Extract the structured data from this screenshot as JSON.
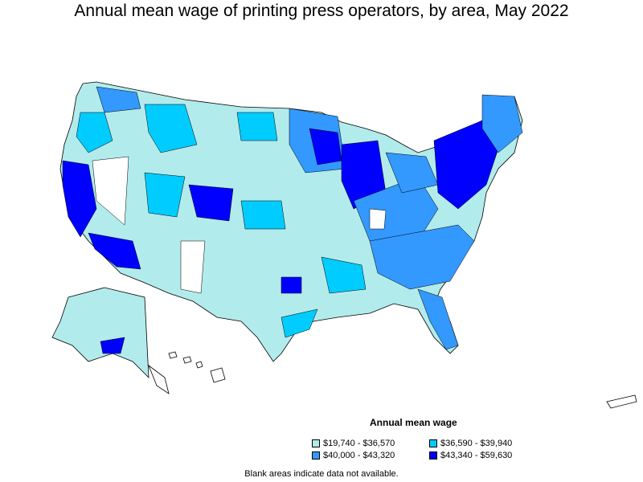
{
  "title": "Annual mean wage of printing press operators, by area, May 2022",
  "legend": {
    "title": "Annual mean wage",
    "items": [
      {
        "label": "$19,740 - $36,570",
        "color": "#b2ebeb"
      },
      {
        "label": "$36,590 - $39,940",
        "color": "#00ccff"
      },
      {
        "label": "$40,000 - $43,320",
        "color": "#3399ff"
      },
      {
        "label": "$43,340 - $59,630",
        "color": "#0000ff"
      }
    ]
  },
  "note": "Blank areas indicate data not available.",
  "colors": {
    "border": "#000000",
    "no_data": "#ffffff"
  }
}
